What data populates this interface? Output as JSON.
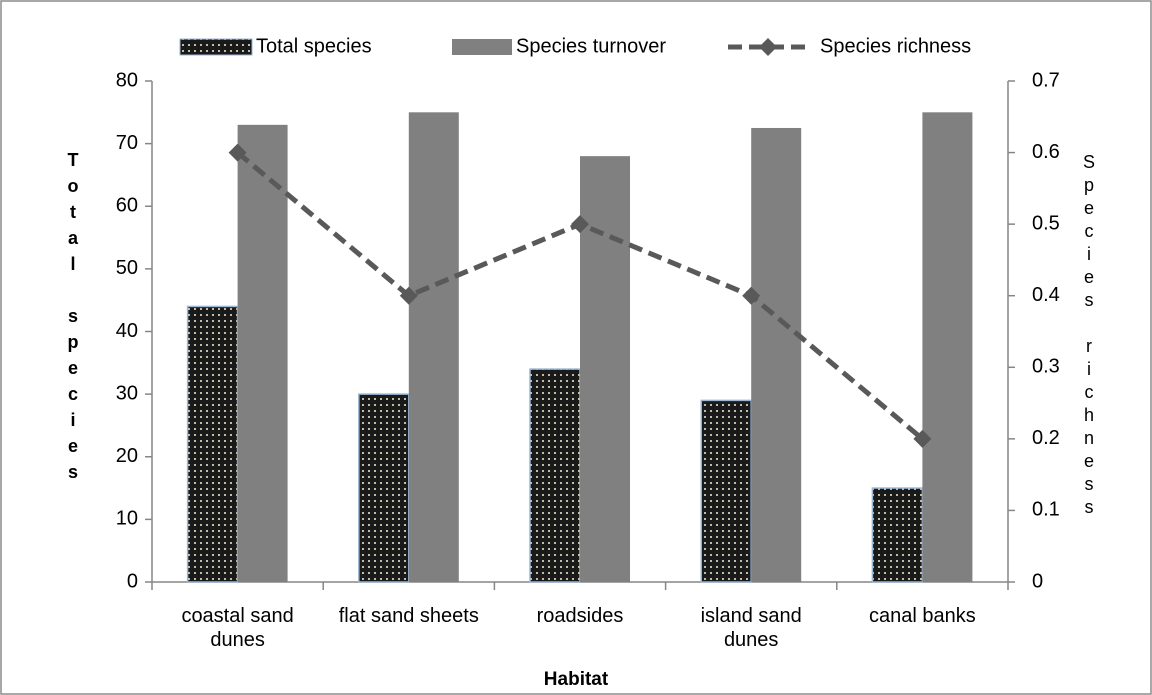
{
  "chart_data": {
    "type": "bar",
    "x_label": "Habitat",
    "y_label": "Total species",
    "y2_label": "Species richness",
    "categories": [
      "coastal sand dunes",
      "flat sand sheets",
      "roadsides",
      "island sand dunes",
      "canal banks"
    ],
    "series": [
      {
        "name": "Total species",
        "color": "#1a1a1a",
        "values": [
          44,
          30,
          34,
          29,
          15
        ]
      },
      {
        "name": "Species turnover",
        "color": "#808080",
        "values": [
          73,
          75,
          68,
          72.5,
          75
        ]
      },
      {
        "name": "Species richness",
        "color": "#595959",
        "type": "line",
        "axis": "y2",
        "values": [
          0.6,
          0.4,
          0.5,
          0.4,
          0.2
        ]
      }
    ],
    "ylim": [
      0,
      80
    ],
    "yticks": [
      0,
      10,
      20,
      30,
      40,
      50,
      60,
      70,
      80
    ],
    "y2lim": [
      0,
      0.7
    ],
    "y2ticks": [
      0,
      0.1,
      0.2,
      0.3,
      0.4,
      0.5,
      0.6,
      0.7
    ],
    "legend": "top"
  }
}
